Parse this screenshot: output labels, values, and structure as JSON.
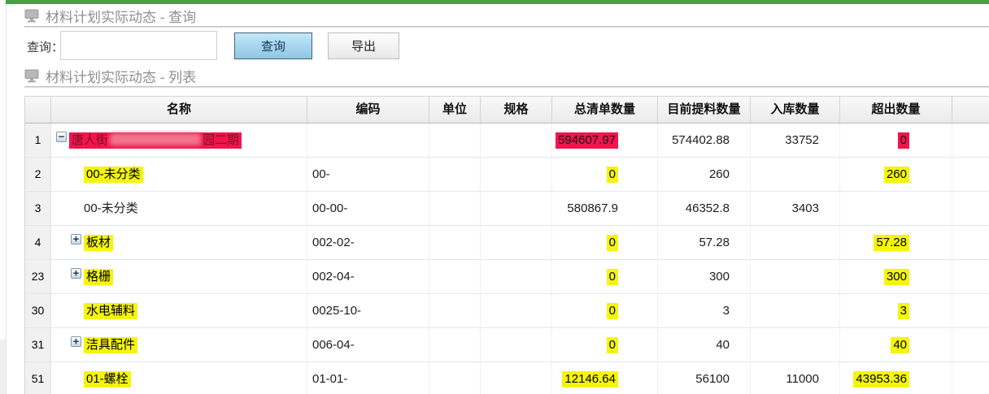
{
  "colors": {
    "top_bar_green": "#47a047",
    "title_gray": "#8f8f8f",
    "highlight_yellow": "#f5f50c",
    "highlight_red": "#f3134d",
    "red_name_text": "#7d1022",
    "search_button_fill": "#a9d9ef",
    "search_button_border": "#44617c"
  },
  "section_query": {
    "title": "材料计划实际动态 - 查询"
  },
  "query_form": {
    "label": "查询：",
    "input_value": "",
    "search_button": "查询",
    "export_button": "导出"
  },
  "section_list": {
    "title": "材料计划实际动态 - 列表"
  },
  "icons": {
    "plus": "+",
    "minus": "−"
  },
  "table": {
    "headers": [
      "",
      "名称",
      "编码",
      "单位",
      "规格",
      "总清单数量",
      "目前提料数量",
      "入库数量",
      "超出数量",
      ""
    ],
    "rows": [
      {
        "num": "1",
        "depth": 0,
        "toggle": "minus",
        "name": {
          "prefix": "唐人街",
          "suffix": "园二期",
          "redacted": true,
          "hl": "red"
        },
        "code": {
          "v": ""
        },
        "unit": {
          "v": ""
        },
        "spec": {
          "v": ""
        },
        "total": {
          "v": "594607.97",
          "hl": "red"
        },
        "picked": {
          "v": "574402.88"
        },
        "stored": {
          "v": "33752"
        },
        "excess": {
          "v": "0",
          "hl": "red"
        }
      },
      {
        "num": "2",
        "depth": 1,
        "toggle": null,
        "name": {
          "text": "00-未分类",
          "hl": "yellow"
        },
        "code": {
          "v": "00-"
        },
        "unit": {
          "v": ""
        },
        "spec": {
          "v": ""
        },
        "total": {
          "v": "0",
          "hl": "yellow"
        },
        "picked": {
          "v": "260"
        },
        "stored": {
          "v": ""
        },
        "excess": {
          "v": "260",
          "hl": "yellow"
        }
      },
      {
        "num": "3",
        "depth": 1,
        "toggle": null,
        "name": {
          "text": "00-未分类"
        },
        "code": {
          "v": "00-00-"
        },
        "unit": {
          "v": ""
        },
        "spec": {
          "v": ""
        },
        "total": {
          "v": "580867.9"
        },
        "picked": {
          "v": "46352.8"
        },
        "stored": {
          "v": "3403"
        },
        "excess": {
          "v": ""
        }
      },
      {
        "num": "4",
        "depth": 1,
        "toggle": "plus",
        "name": {
          "text": "板材",
          "hl": "yellow"
        },
        "code": {
          "v": "002-02-"
        },
        "unit": {
          "v": ""
        },
        "spec": {
          "v": ""
        },
        "total": {
          "v": "0",
          "hl": "yellow"
        },
        "picked": {
          "v": "57.28"
        },
        "stored": {
          "v": ""
        },
        "excess": {
          "v": "57.28",
          "hl": "yellow"
        }
      },
      {
        "num": "23",
        "depth": 1,
        "toggle": "plus",
        "name": {
          "text": "格栅",
          "hl": "yellow"
        },
        "code": {
          "v": "002-04-"
        },
        "unit": {
          "v": ""
        },
        "spec": {
          "v": ""
        },
        "total": {
          "v": "0",
          "hl": "yellow"
        },
        "picked": {
          "v": "300"
        },
        "stored": {
          "v": ""
        },
        "excess": {
          "v": "300",
          "hl": "yellow"
        }
      },
      {
        "num": "30",
        "depth": 1,
        "toggle": null,
        "name": {
          "text": "水电辅料",
          "hl": "yellow"
        },
        "code": {
          "v": "0025-10-"
        },
        "unit": {
          "v": ""
        },
        "spec": {
          "v": ""
        },
        "total": {
          "v": "0",
          "hl": "yellow"
        },
        "picked": {
          "v": "3"
        },
        "stored": {
          "v": ""
        },
        "excess": {
          "v": "3",
          "hl": "yellow"
        }
      },
      {
        "num": "31",
        "depth": 1,
        "toggle": "plus",
        "name": {
          "text": "洁具配件",
          "hl": "yellow"
        },
        "code": {
          "v": "006-04-"
        },
        "unit": {
          "v": ""
        },
        "spec": {
          "v": ""
        },
        "total": {
          "v": "0",
          "hl": "yellow"
        },
        "picked": {
          "v": "40"
        },
        "stored": {
          "v": ""
        },
        "excess": {
          "v": "40",
          "hl": "yellow"
        }
      },
      {
        "num": "51",
        "depth": 1,
        "toggle": null,
        "name": {
          "text": "01-螺栓",
          "hl": "yellow"
        },
        "code": {
          "v": "01-01-"
        },
        "unit": {
          "v": ""
        },
        "spec": {
          "v": ""
        },
        "total": {
          "v": "12146.64",
          "hl": "yellow"
        },
        "picked": {
          "v": "56100"
        },
        "stored": {
          "v": "11000"
        },
        "excess": {
          "v": "43953.36",
          "hl": "yellow"
        }
      }
    ]
  }
}
